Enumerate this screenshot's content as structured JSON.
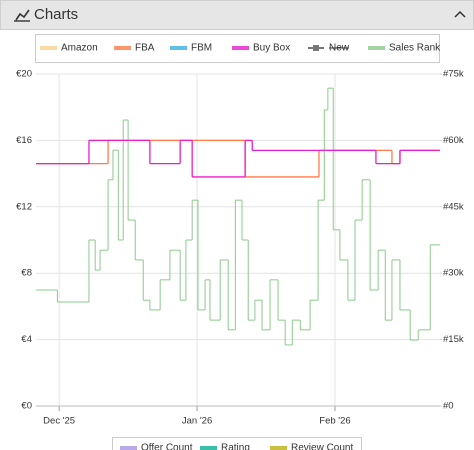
{
  "header": {
    "title": "Charts"
  },
  "chart_data": {
    "type": "step-line",
    "xlim": [
      -5.2,
      85.6
    ],
    "xticks": [
      {
        "value": 0,
        "label": "Dec '25"
      },
      {
        "value": 31,
        "label": "Jan '26"
      },
      {
        "value": 62,
        "label": "Feb '26"
      }
    ],
    "ylim": [
      0,
      20
    ],
    "yticks": [
      {
        "value": 0,
        "label": "€0"
      },
      {
        "value": 4,
        "label": "€4"
      },
      {
        "value": 8,
        "label": "€8"
      },
      {
        "value": 12,
        "label": "€12"
      },
      {
        "value": 16,
        "label": "€16"
      },
      {
        "value": 20,
        "label": "€20"
      }
    ],
    "y2lim": [
      0,
      75000
    ],
    "y2ticks": [
      {
        "value": 0,
        "label": "#0"
      },
      {
        "value": 15000,
        "label": "#15k"
      },
      {
        "value": 30000,
        "label": "#30k"
      },
      {
        "value": 45000,
        "label": "#45k"
      },
      {
        "value": 60000,
        "label": "#60k"
      },
      {
        "value": 75000,
        "label": "#75k"
      }
    ],
    "grid": true,
    "series": [
      {
        "name": "Amazon",
        "color": "#ffd08f",
        "x": [
          6.7,
          41.8
        ],
        "values": [
          16,
          null
        ]
      },
      {
        "name": "FBA",
        "color": "#ff7a4a",
        "x": [
          -5.2,
          11.0,
          41.8,
          58.4,
          74.8,
          76.6
        ],
        "values": [
          14.6,
          16,
          13.8,
          15.4,
          14.6,
          15.4
        ]
      },
      {
        "name": "FBM",
        "color": "#3aaee2",
        "x": [],
        "values": []
      },
      {
        "name": "Buy Box",
        "color": "#e81ec8",
        "x": [
          -5.2,
          6.7,
          20.4,
          27.2,
          29.9,
          41.8,
          43.4,
          71.2,
          76.6
        ],
        "values": [
          14.6,
          16,
          14.6,
          16,
          13.8,
          16,
          15.4,
          14.6,
          15.4
        ]
      },
      {
        "name": "New",
        "color": "#777777",
        "hidden": true,
        "x": [],
        "values": []
      },
      {
        "name": "Sales Rank",
        "color": "#8cc98c",
        "axis": "y2",
        "x": [
          -5.2,
          -0.4,
          6.7,
          8.1,
          9.2,
          11.0,
          12.1,
          13.3,
          14.4,
          15.5,
          17.1,
          18.9,
          20.4,
          22.7,
          24.9,
          27.2,
          28.5,
          29.9,
          31.2,
          32.8,
          33.9,
          36.2,
          38.0,
          39.6,
          41.1,
          42.5,
          44.0,
          45.6,
          47.4,
          49.2,
          50.8,
          52.4,
          54.2,
          56.4,
          58.2,
          59.6,
          60.4,
          61.6,
          63.1,
          64.9,
          66.5,
          68.1,
          69.9,
          71.7,
          73.3,
          74.8,
          76.6,
          78.9,
          80.7,
          83.4
        ],
        "values": [
          26200,
          23500,
          37500,
          30700,
          35200,
          51100,
          57800,
          37500,
          64600,
          42000,
          33000,
          23900,
          21700,
          28500,
          35200,
          23900,
          37500,
          46500,
          21700,
          28500,
          19400,
          33000,
          17200,
          46500,
          37500,
          19400,
          23900,
          17200,
          28500,
          19400,
          13800,
          19400,
          17200,
          23900,
          46500,
          66900,
          71800,
          39800,
          33000,
          23900,
          42000,
          51100,
          26200,
          35200,
          19400,
          33000,
          21700,
          14900,
          17200,
          36400
        ]
      }
    ],
    "legend2": [
      {
        "name": "Offer Count",
        "color": "#b9a9ea"
      },
      {
        "name": "Rating",
        "color": "#3cbfa8"
      },
      {
        "name": "Review Count",
        "color": "#c9c040"
      }
    ]
  }
}
